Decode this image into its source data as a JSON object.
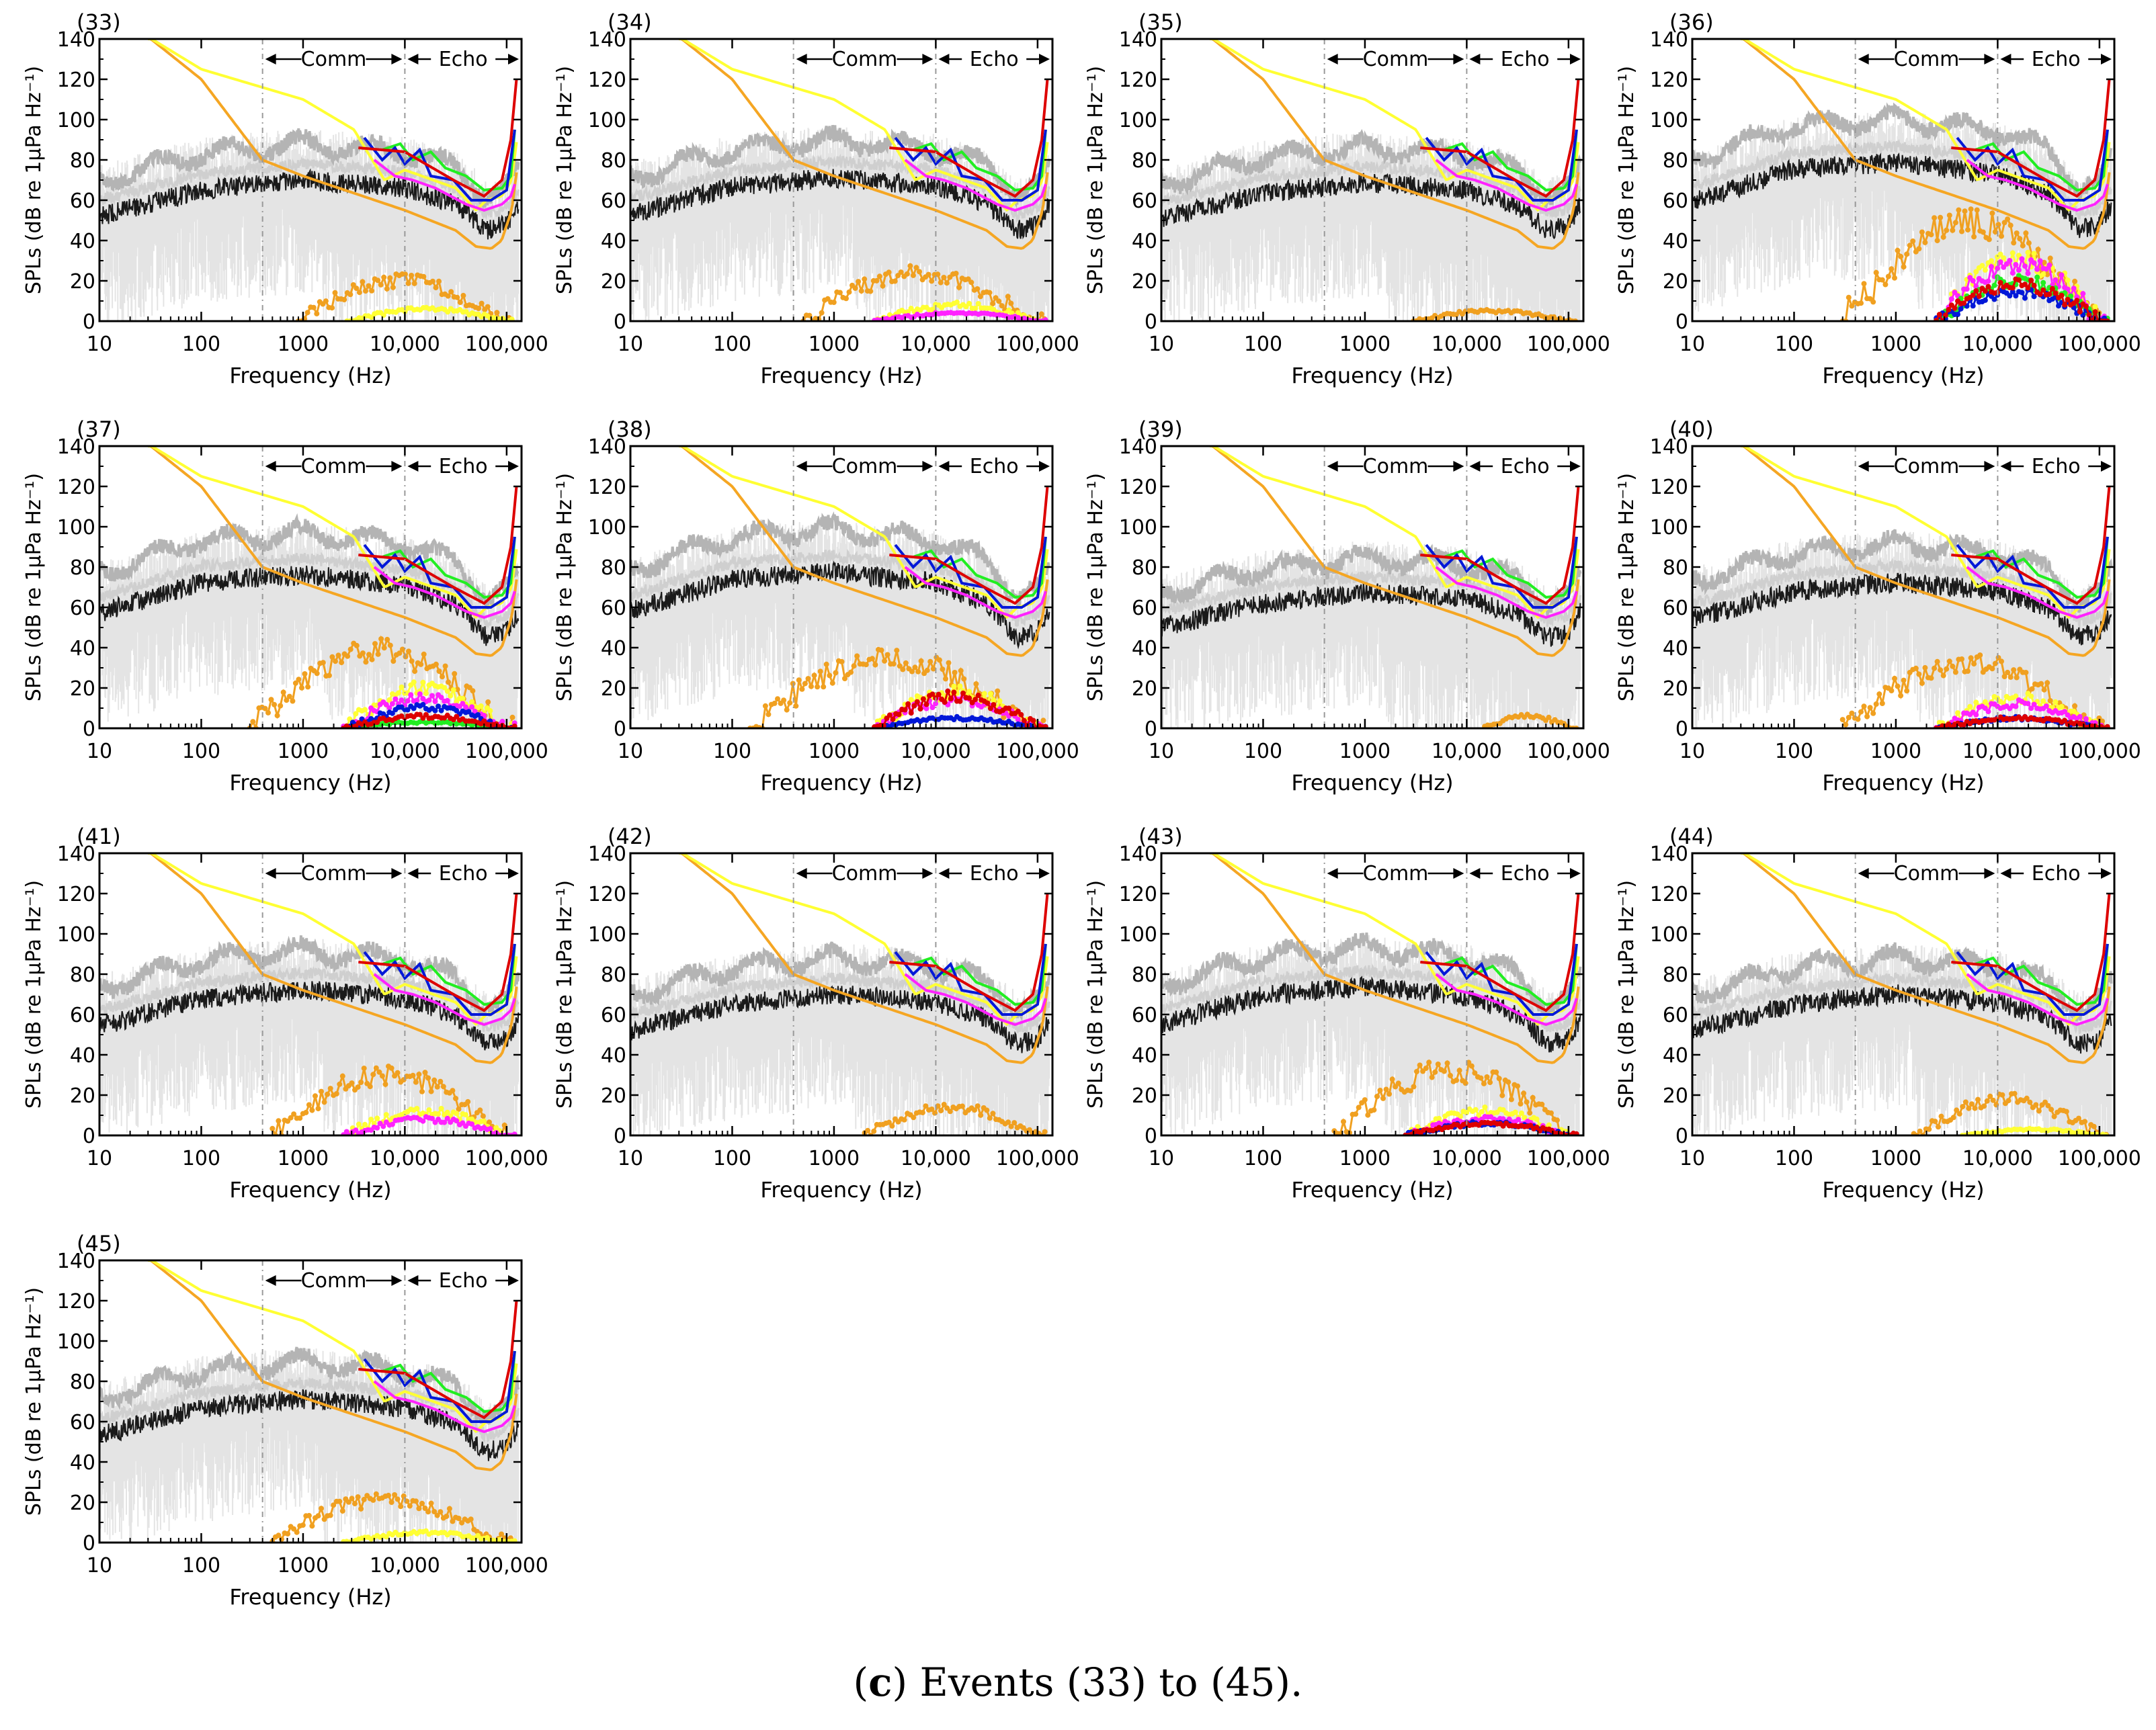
{
  "figure": {
    "caption_prefix": "(",
    "caption_letter": "c",
    "caption_text": ") Events (33) to (45)."
  },
  "common_axes": {
    "xlabel": "Frequency (Hz)",
    "ylabel": "SPLs (dB re 1μPa Hz⁻¹)",
    "xscale": "log",
    "xlim": [
      10,
      140000
    ],
    "ylim": [
      0,
      140
    ],
    "xticks": [
      10,
      100,
      1000,
      10000,
      100000
    ],
    "xtick_labels": [
      "10",
      "100",
      "1000",
      "10,000",
      "100,000"
    ],
    "yticks": [
      0,
      20,
      40,
      60,
      80,
      100,
      120,
      140
    ],
    "ytick_labels": [
      "0",
      "20",
      "40",
      "60",
      "80",
      "100",
      "120",
      "140"
    ],
    "bands": [
      {
        "label": "Comm",
        "from": 400,
        "to": 10000
      },
      {
        "label": "Echo",
        "from": 10000,
        "to": 140000
      }
    ],
    "divider_lines_hz": [
      400,
      10000
    ]
  },
  "colors": {
    "max": "#b4b4b4",
    "mean": "#cfcfcf",
    "median": "#1a1a1a",
    "spread": "#e4e4e4",
    "low_freq_threshold": "#f5a623",
    "mid_freq_threshold": "#ffff33",
    "red": "#dd0000",
    "blue": "#0018d8",
    "green": "#22ee22",
    "magenta": "#ff22ff",
    "exceedance": "#f0a020",
    "divider": "#999999"
  },
  "chart_data": [
    {
      "type": "line",
      "title": "(33)",
      "level": 0.0,
      "excess": {
        "orange": 20,
        "yellow": 6,
        "magenta": 0,
        "red": 0,
        "blue": 0,
        "green": 0,
        "start_hz": 900
      }
    },
    {
      "type": "line",
      "title": "(34)",
      "level": 0.05,
      "excess": {
        "orange": 24,
        "yellow": 8,
        "magenta": 4,
        "red": 0,
        "blue": 0,
        "green": 0,
        "start_hz": 500
      }
    },
    {
      "type": "line",
      "title": "(35)",
      "level": -0.05,
      "excess": {
        "orange": 5,
        "yellow": 0,
        "magenta": 0,
        "red": 0,
        "blue": 0,
        "green": 0,
        "start_hz": 3000
      }
    },
    {
      "type": "line",
      "title": "(36)",
      "level": 0.35,
      "excess": {
        "orange": 48,
        "yellow": 30,
        "magenta": 28,
        "red": 18,
        "blue": 14,
        "green": 20,
        "start_hz": 300
      }
    },
    {
      "type": "line",
      "title": "(37)",
      "level": 0.25,
      "excess": {
        "orange": 38,
        "yellow": 20,
        "magenta": 15,
        "red": 6,
        "blue": 10,
        "green": 3,
        "start_hz": 300
      }
    },
    {
      "type": "line",
      "title": "(38)",
      "level": 0.3,
      "excess": {
        "orange": 35,
        "yellow": 18,
        "magenta": 14,
        "red": 16,
        "blue": 5,
        "green": 0,
        "start_hz": 150
      }
    },
    {
      "type": "line",
      "title": "(39)",
      "level": -0.1,
      "excess": {
        "orange": 6,
        "yellow": 0,
        "magenta": 0,
        "red": 0,
        "blue": 0,
        "green": 0,
        "start_hz": 15000
      }
    },
    {
      "type": "line",
      "title": "(40)",
      "level": 0.1,
      "excess": {
        "orange": 32,
        "yellow": 15,
        "magenta": 12,
        "red": 5,
        "blue": 5,
        "green": 0,
        "start_hz": 300
      }
    },
    {
      "type": "line",
      "title": "(41)",
      "level": 0.1,
      "excess": {
        "orange": 30,
        "yellow": 12,
        "magenta": 8,
        "red": 0,
        "blue": 0,
        "green": 0,
        "start_hz": 500
      }
    },
    {
      "type": "line",
      "title": "(42)",
      "level": 0.0,
      "excess": {
        "orange": 14,
        "yellow": 0,
        "magenta": 0,
        "red": 0,
        "blue": 0,
        "green": 0,
        "start_hz": 2000
      }
    },
    {
      "type": "line",
      "title": "(43)",
      "level": 0.15,
      "excess": {
        "orange": 32,
        "yellow": 12,
        "magenta": 8,
        "red": 6,
        "blue": 6,
        "green": 0,
        "start_hz": 500
      }
    },
    {
      "type": "line",
      "title": "(44)",
      "level": 0.0,
      "excess": {
        "orange": 18,
        "yellow": 3,
        "magenta": 0,
        "red": 0,
        "blue": 0,
        "green": 0,
        "start_hz": 1500
      }
    },
    {
      "type": "line",
      "title": "(45)",
      "level": 0.05,
      "excess": {
        "orange": 22,
        "yellow": 5,
        "magenta": 0,
        "red": 0,
        "blue": 0,
        "green": 0,
        "start_hz": 500
      }
    }
  ]
}
